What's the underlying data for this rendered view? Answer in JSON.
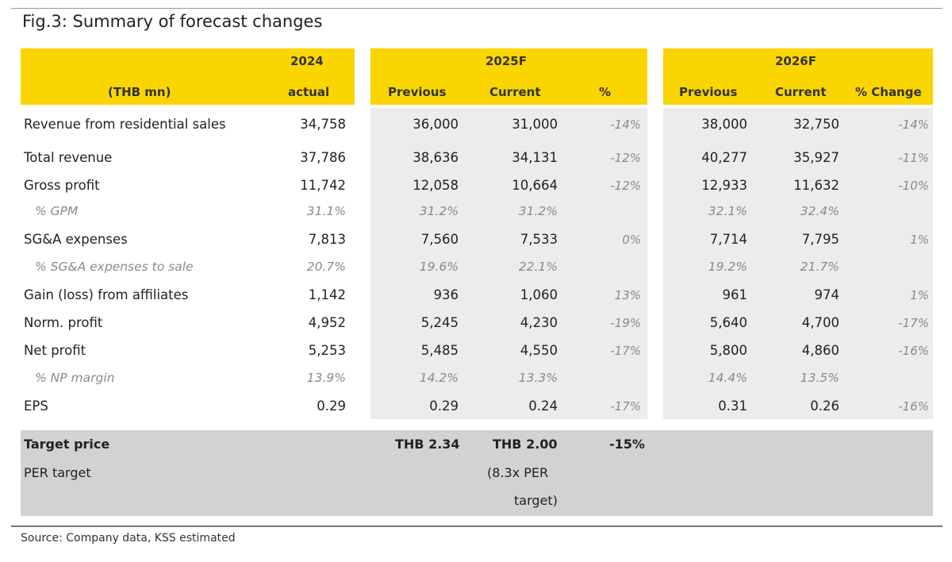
{
  "title": "Fig.3: Summary of forecast changes",
  "header": {
    "col2024_year": "2024",
    "col2024_sub": "actual",
    "unit": "(THB mn)",
    "group2025": "2025F",
    "group2026": "2026F",
    "prev": "Previous",
    "curr": "Current",
    "pct2025": "%",
    "pct2026": "% Change"
  },
  "rows": [
    {
      "label": "Revenue from residential sales",
      "a": "34,758",
      "p25": "36,000",
      "c25": "31,000",
      "d25": "-14%",
      "p26": "38,000",
      "c26": "32,750",
      "d26": "-14%"
    },
    {
      "label": "Total revenue",
      "a": "37,786",
      "p25": "38,636",
      "c25": "34,131",
      "d25": "-12%",
      "p26": "40,277",
      "c26": "35,927",
      "d26": "-11%"
    },
    {
      "label": "Gross profit",
      "a": "11,742",
      "p25": "12,058",
      "c25": "10,664",
      "d25": "-12%",
      "p26": "12,933",
      "c26": "11,632",
      "d26": "-10%"
    },
    {
      "label": "% GPM",
      "a": "31.1%",
      "p25": "31.2%",
      "c25": "31.2%",
      "d25": "",
      "p26": "32.1%",
      "c26": "32.4%",
      "d26": ""
    },
    {
      "label": "SG&A expenses",
      "a": "7,813",
      "p25": "7,560",
      "c25": "7,533",
      "d25": "0%",
      "p26": "7,714",
      "c26": "7,795",
      "d26": "1%"
    },
    {
      "label": "% SG&A expenses to sale",
      "a": "20.7%",
      "p25": "19.6%",
      "c25": "22.1%",
      "d25": "",
      "p26": "19.2%",
      "c26": "21.7%",
      "d26": ""
    },
    {
      "label": "Gain (loss) from affiliates",
      "a": "1,142",
      "p25": "936",
      "c25": "1,060",
      "d25": "13%",
      "p26": "961",
      "c26": "974",
      "d26": "1%"
    },
    {
      "label": "Norm. profit",
      "a": "4,952",
      "p25": "5,245",
      "c25": "4,230",
      "d25": "-19%",
      "p26": "5,640",
      "c26": "4,700",
      "d26": "-17%"
    },
    {
      "label": "Net profit",
      "a": "5,253",
      "p25": "5,485",
      "c25": "4,550",
      "d25": "-17%",
      "p26": "5,800",
      "c26": "4,860",
      "d26": "-16%"
    },
    {
      "label": "% NP margin",
      "a": "13.9%",
      "p25": "14.2%",
      "c25": "13.3%",
      "d25": "",
      "p26": "14.4%",
      "c26": "13.5%",
      "d26": ""
    },
    {
      "label": "EPS",
      "a": "0.29",
      "p25": "0.29",
      "c25": "0.24",
      "d25": "-17%",
      "p26": "0.31",
      "c26": "0.26",
      "d26": "-16%"
    }
  ],
  "target": {
    "label": "Target price",
    "previous": "THB 2.34",
    "current": "THB 2.00",
    "change": "-15%",
    "per_label": "PER target",
    "per_note_1": "(8.3x PER",
    "per_note_2": "target)"
  },
  "source": "Source: Company data, KSS estimated",
  "colors": {
    "header_yellow": "#fad500",
    "body_gray": "#ececec",
    "target_gray": "#d2d2d2"
  }
}
